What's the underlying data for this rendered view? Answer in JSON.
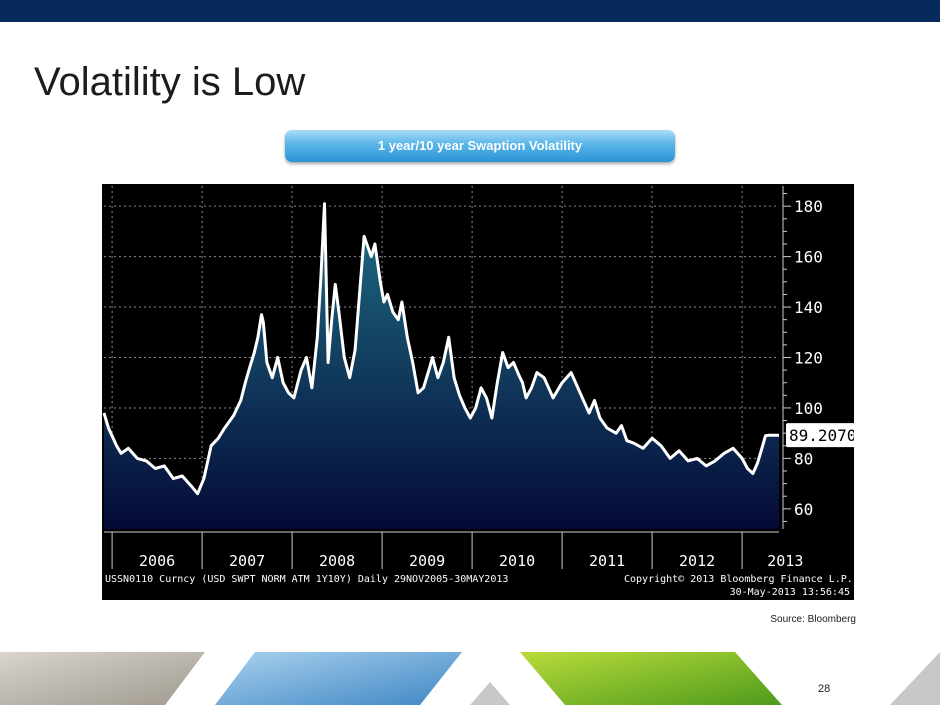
{
  "slide": {
    "title": "Volatility is Low",
    "chart_banner": "1 year/10 year Swaption Volatility",
    "source": "Source: Bloomberg",
    "page_number": "28"
  },
  "colors": {
    "top_bar": "#062a5c",
    "banner": "#3aa3e0",
    "line": "#ffffff",
    "area_top": "#1f6e86",
    "area_bottom": "#040a36",
    "plot_background": "#000000"
  },
  "chart_data": {
    "type": "area",
    "title": "",
    "xlabel": "",
    "ylabel": "",
    "x_tick_labels": [
      "2006",
      "2007",
      "2008",
      "2009",
      "2010",
      "2011",
      "2012",
      "2013"
    ],
    "y_ticks": [
      60,
      80,
      100,
      120,
      140,
      160,
      180
    ],
    "ylim": [
      52,
      188
    ],
    "xlim": [
      2005.91,
      2013.41
    ],
    "grid": true,
    "axis_side": "right",
    "last_value_label": "89.2070",
    "footer_left": "USSN0110 Curncy (USD SWPT NORM ATM 1Y10Y)  Daily 29NOV2005-30MAY2013",
    "footer_right_line1": "Copyright© 2013 Bloomberg Finance L.P.",
    "footer_right_line2": "30-May-2013 13:56:45",
    "series": [
      {
        "name": "USSN0110 Curncy",
        "x": [
          2005.91,
          2005.96,
          2006.05,
          2006.1,
          2006.18,
          2006.28,
          2006.38,
          2006.48,
          2006.58,
          2006.68,
          2006.78,
          2006.88,
          2006.95,
          2007.02,
          2007.1,
          2007.18,
          2007.25,
          2007.35,
          2007.43,
          2007.48,
          2007.52,
          2007.58,
          2007.62,
          2007.66,
          2007.68,
          2007.72,
          2007.78,
          2007.84,
          2007.9,
          2007.96,
          2008.02,
          2008.1,
          2008.16,
          2008.22,
          2008.28,
          2008.32,
          2008.36,
          2008.4,
          2008.44,
          2008.48,
          2008.52,
          2008.58,
          2008.64,
          2008.7,
          2008.76,
          2008.8,
          2008.84,
          2008.88,
          2008.92,
          2008.98,
          2009.02,
          2009.06,
          2009.12,
          2009.18,
          2009.22,
          2009.28,
          2009.34,
          2009.4,
          2009.46,
          2009.52,
          2009.56,
          2009.62,
          2009.68,
          2009.74,
          2009.8,
          2009.86,
          2009.92,
          2009.98,
          2010.04,
          2010.1,
          2010.16,
          2010.22,
          2010.28,
          2010.34,
          2010.4,
          2010.46,
          2010.52,
          2010.56,
          2010.6,
          2010.66,
          2010.72,
          2010.8,
          2010.9,
          2011.0,
          2011.1,
          2011.2,
          2011.3,
          2011.36,
          2011.42,
          2011.5,
          2011.6,
          2011.66,
          2011.72,
          2011.8,
          2011.9,
          2012.0,
          2012.1,
          2012.2,
          2012.3,
          2012.4,
          2012.5,
          2012.6,
          2012.7,
          2012.8,
          2012.9,
          2013.0,
          2013.06,
          2013.12,
          2013.17,
          2013.22,
          2013.26,
          2013.3,
          2013.34,
          2013.38,
          2013.41
        ],
        "values": [
          98,
          92,
          85,
          82,
          84,
          80,
          79,
          76,
          77,
          72,
          73,
          69,
          66,
          72,
          85,
          88,
          92,
          97,
          103,
          110,
          115,
          122,
          128,
          137,
          134,
          118,
          112,
          120,
          110,
          106,
          104,
          115,
          120,
          108,
          128,
          152,
          181,
          118,
          135,
          149,
          138,
          120,
          112,
          123,
          150,
          168,
          164,
          160,
          165,
          150,
          142,
          145,
          138,
          135,
          142,
          128,
          118,
          106,
          108,
          115,
          120,
          112,
          118,
          128,
          112,
          105,
          100,
          96,
          100,
          108,
          104,
          96,
          110,
          122,
          116,
          118,
          113,
          110,
          104,
          108,
          114,
          112,
          104,
          110,
          114,
          106,
          98,
          103,
          96,
          92,
          90,
          93,
          87,
          86,
          84,
          88,
          85,
          80,
          83,
          79,
          80,
          77,
          79,
          82,
          84,
          80,
          76,
          74,
          78,
          84,
          89,
          89.2,
          89.2,
          89.2,
          89.2
        ]
      }
    ]
  }
}
